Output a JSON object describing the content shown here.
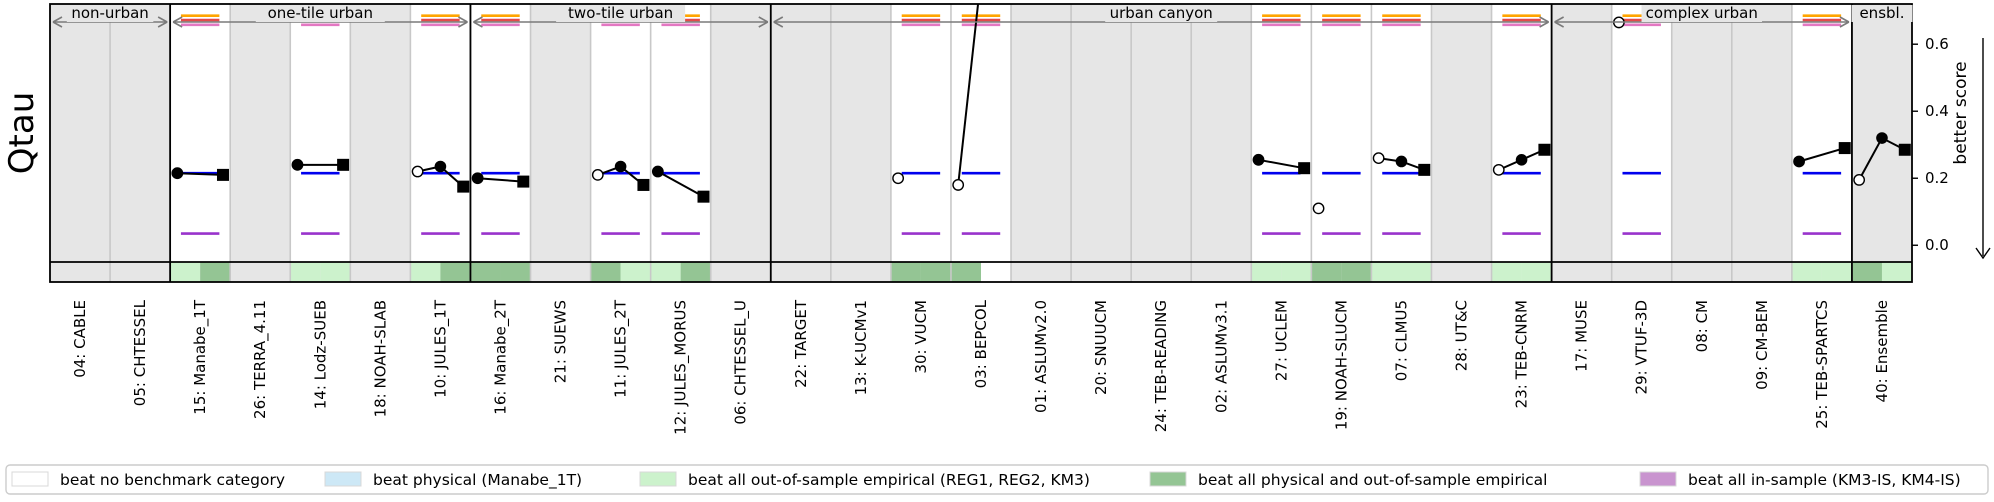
{
  "chart_data": {
    "type": "scatter",
    "ylabel": "Qtau",
    "y2label": "better score",
    "ylim": [
      -0.05,
      0.72
    ],
    "yticks": [
      0.0,
      0.2,
      0.4,
      0.6
    ],
    "yticklabels": [
      "0.0",
      "0.2",
      "0.4",
      "0.6"
    ],
    "categories": [
      "04: CABLE",
      "05: CHTESSEL",
      "15: Manabe_1T",
      "26: TERRA_4.11",
      "14: Lodz-SUEB",
      "18: NOAH-SLAB",
      "10: JULES_1T",
      "16: Manabe_2T",
      "21: SUEWS",
      "11: JULES_2T",
      "12: JULES_MORUS",
      "06: CHTESSEL_U",
      "22: TARGET",
      "13: K-UCMv1",
      "30: VUCM",
      "03: BEPCOL",
      "01: ASLUMv2.0",
      "20: SNUUCM",
      "24: TEB-READING",
      "02: ASLUMv3.1",
      "27: UCLEM",
      "19: NOAH-SLUCM",
      "07: CLMU5",
      "28: UT&C",
      "23: TEB-CNRM",
      "17: MUSE",
      "29: VTUF-3D",
      "08: CM",
      "09: CM-BEM",
      "25: TEB-SPARTCS",
      "40: Ensemble"
    ],
    "groups": [
      {
        "label": "non-urban",
        "start": 0,
        "end": 1
      },
      {
        "label": "one-tile urban",
        "start": 2,
        "end": 6
      },
      {
        "label": "two-tile urban",
        "start": 7,
        "end": 11
      },
      {
        "label": "urban canyon",
        "start": 12,
        "end": 24
      },
      {
        "label": "complex urban",
        "start": 25,
        "end": 29
      },
      {
        "label": "ensbl.",
        "start": 30,
        "end": 30
      }
    ],
    "white_columns": [
      2,
      4,
      6,
      7,
      9,
      10,
      14,
      15,
      20,
      21,
      22,
      24,
      26,
      29
    ],
    "benchmark_lines": [
      {
        "name": "orange",
        "value": 0.685,
        "color": "#ffa500"
      },
      {
        "name": "red",
        "value": 0.672,
        "color": "#e34a4a"
      },
      {
        "name": "pink",
        "value": 0.658,
        "color": "#e377c2"
      },
      {
        "name": "blue",
        "value": 0.215,
        "color": "#0000ee"
      },
      {
        "name": "purple",
        "value": 0.035,
        "color": "#9933cc"
      }
    ],
    "points": [
      {
        "model": 2,
        "stage1": 0.215,
        "stage2": null,
        "stage3": 0.21
      },
      {
        "model": 4,
        "stage1": 0.24,
        "stage2": null,
        "stage3": 0.24
      },
      {
        "model": 6,
        "stage1": 0.22,
        "stage2": 0.235,
        "stage3": 0.175,
        "stage1_open": true
      },
      {
        "model": 7,
        "stage1": 0.2,
        "stage2": null,
        "stage3": 0.19
      },
      {
        "model": 9,
        "stage1": 0.21,
        "stage2": 0.235,
        "stage3": 0.18,
        "stage1_open": true
      },
      {
        "model": 10,
        "stage1": 0.22,
        "stage2": null,
        "stage3": 0.145
      },
      {
        "model": 14,
        "stage1": 0.2,
        "stage2": null,
        "stage3": null,
        "stage1_open": true
      },
      {
        "model": 15,
        "stage1": 0.18,
        "stage2": 0.8,
        "stage3": null,
        "stage1_open": true
      },
      {
        "model": 20,
        "stage1": 0.255,
        "stage2": null,
        "stage3": 0.23
      },
      {
        "model": 21,
        "stage1": 0.11,
        "stage2": null,
        "stage3": null,
        "stage1_open": true
      },
      {
        "model": 22,
        "stage1": 0.26,
        "stage2": 0.25,
        "stage3": 0.225,
        "stage1_open": true
      },
      {
        "model": 24,
        "stage1": 0.225,
        "stage2": 0.255,
        "stage3": 0.285,
        "stage1_open": true
      },
      {
        "model": 26,
        "stage1": 0.665,
        "stage2": null,
        "stage3": null,
        "stage1_open": true
      },
      {
        "model": 29,
        "stage1": 0.25,
        "stage2": null,
        "stage3": 0.29
      },
      {
        "model": 30,
        "stage1": 0.195,
        "stage2": 0.32,
        "stage3": 0.285,
        "stage1_open": true
      }
    ],
    "benchmark_beats": [
      {
        "model": 2,
        "stages": [
          "lightgreen",
          "darkgreen"
        ]
      },
      {
        "model": 4,
        "stages": [
          "lightgreen",
          "lightgreen"
        ]
      },
      {
        "model": 6,
        "stages": [
          "lightgreen",
          "darkgreen"
        ]
      },
      {
        "model": 7,
        "stages": [
          "darkgreen",
          "darkgreen"
        ]
      },
      {
        "model": 9,
        "stages": [
          "darkgreen",
          "lightgreen"
        ]
      },
      {
        "model": 10,
        "stages": [
          "lightgreen",
          "darkgreen"
        ]
      },
      {
        "model": 14,
        "stages": [
          "darkgreen",
          "darkgreen"
        ]
      },
      {
        "model": 15,
        "stages": [
          "darkgreen",
          "white"
        ]
      },
      {
        "model": 20,
        "stages": [
          "lightgreen",
          "lightgreen"
        ]
      },
      {
        "model": 21,
        "stages": [
          "darkgreen",
          "darkgreen"
        ]
      },
      {
        "model": 22,
        "stages": [
          "lightgreen",
          "lightgreen"
        ]
      },
      {
        "model": 24,
        "stages": [
          "lightgreen",
          "lightgreen"
        ]
      },
      {
        "model": 29,
        "stages": [
          "lightgreen",
          "lightgreen"
        ]
      },
      {
        "model": 30,
        "stages": [
          "darkgreen",
          "lightgreen"
        ]
      }
    ],
    "legend": [
      {
        "label": "beat no benchmark category",
        "color": "#ffffff"
      },
      {
        "label": "beat physical (Manabe_1T)",
        "color": "#cde8f6"
      },
      {
        "label": "beat all out-of-sample empirical (REG1, REG2, KM3)",
        "color": "#ccf2cc"
      },
      {
        "label": "beat all physical and out-of-sample empirical",
        "color": "#94c594"
      },
      {
        "label": "beat all in-sample (KM3-IS, KM4-IS)",
        "color": "#c994cf"
      }
    ],
    "legend_placement": "bottom"
  }
}
